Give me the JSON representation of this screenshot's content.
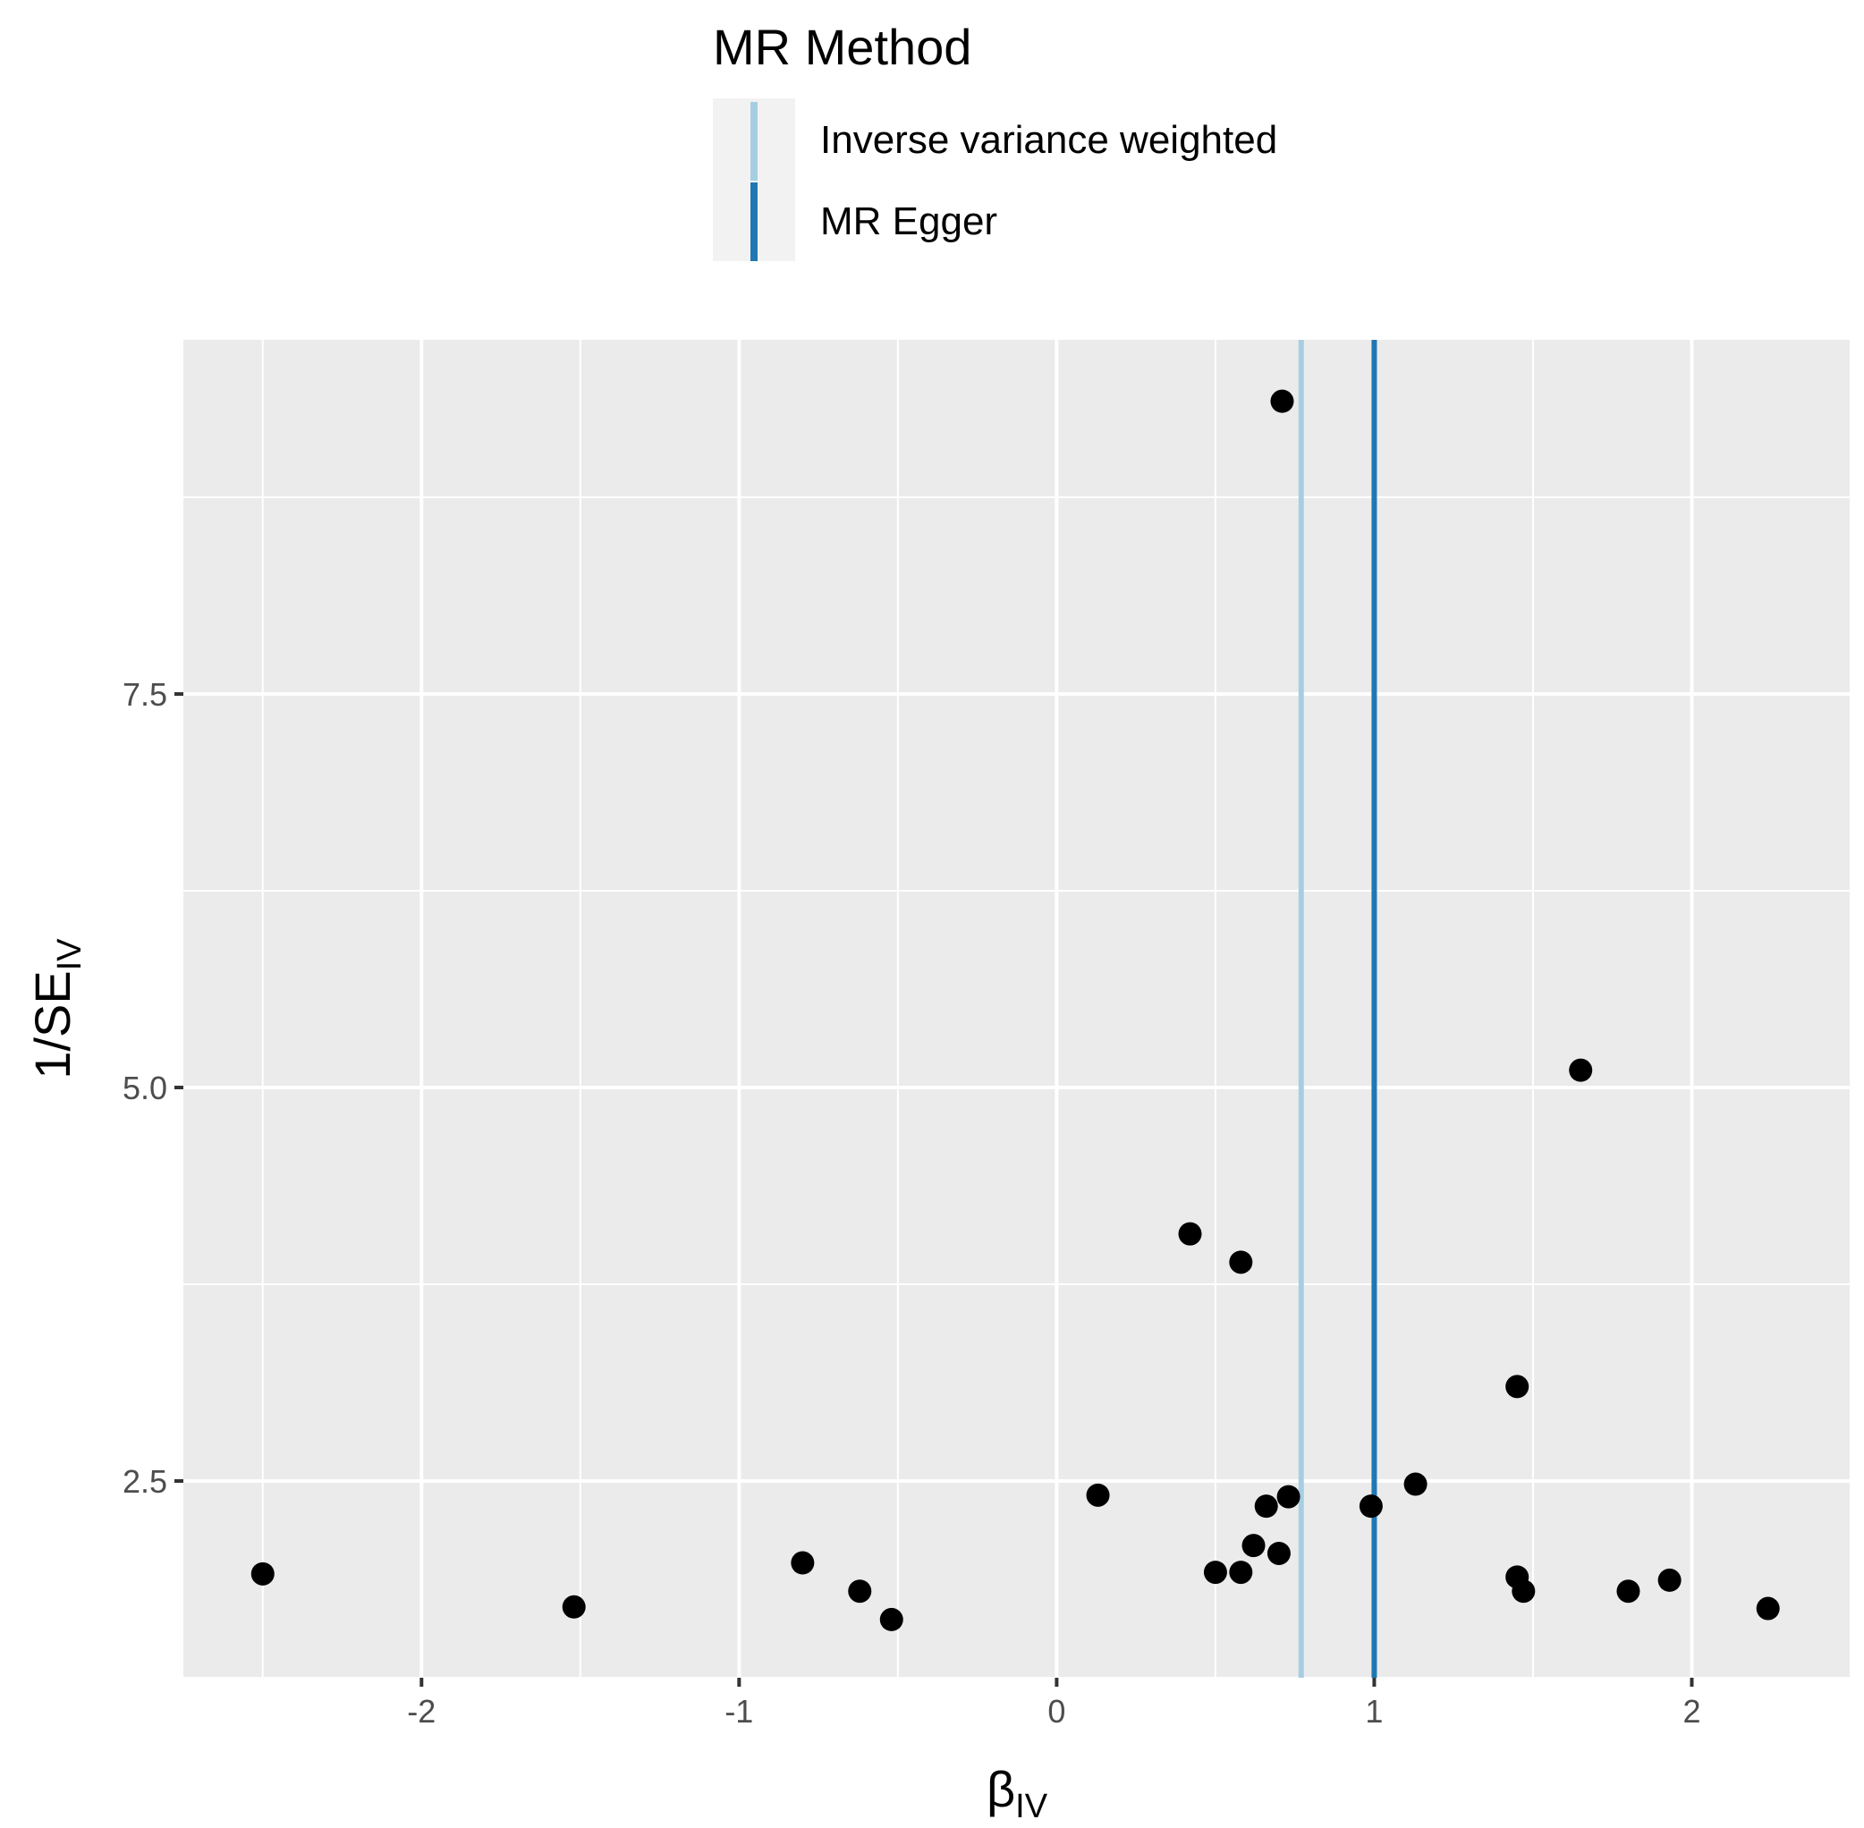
{
  "chart_data": {
    "type": "scatter",
    "xlabel": {
      "main": "β",
      "sub": "IV"
    },
    "ylabel": {
      "main": "1/SE",
      "sub": "IV"
    },
    "xlim": [
      -2.75,
      2.5
    ],
    "ylim": [
      1.25,
      9.75
    ],
    "x_ticks": [
      -2,
      -1,
      0,
      1,
      2
    ],
    "x_tick_labels": [
      "-2",
      "-1",
      "0",
      "1",
      "2"
    ],
    "y_ticks": [
      2.5,
      5.0,
      7.5
    ],
    "y_tick_labels": [
      "2.5",
      "5.0",
      "7.5"
    ],
    "grid": true,
    "legend": {
      "title": "MR Method",
      "position": "top",
      "entries": [
        {
          "label": "Inverse variance weighted",
          "color": "#a6cee3"
        },
        {
          "label": "MR Egger",
          "color": "#1f78b4"
        }
      ]
    },
    "vlines": [
      {
        "name": "Inverse variance weighted",
        "x": 0.77,
        "color": "#a6cee3"
      },
      {
        "name": "MR Egger",
        "x": 1.0,
        "color": "#1f78b4"
      }
    ],
    "points": [
      {
        "x": -2.5,
        "y": 1.91
      },
      {
        "x": -1.52,
        "y": 1.7
      },
      {
        "x": -0.8,
        "y": 1.98
      },
      {
        "x": -0.62,
        "y": 1.8
      },
      {
        "x": -0.52,
        "y": 1.62
      },
      {
        "x": 0.13,
        "y": 2.41
      },
      {
        "x": 0.42,
        "y": 4.07
      },
      {
        "x": 0.5,
        "y": 1.92
      },
      {
        "x": 0.58,
        "y": 1.92
      },
      {
        "x": 0.58,
        "y": 3.89
      },
      {
        "x": 0.62,
        "y": 2.09
      },
      {
        "x": 0.66,
        "y": 2.34
      },
      {
        "x": 0.7,
        "y": 2.04
      },
      {
        "x": 0.71,
        "y": 9.36
      },
      {
        "x": 0.73,
        "y": 2.4
      },
      {
        "x": 0.99,
        "y": 2.34
      },
      {
        "x": 1.13,
        "y": 2.48
      },
      {
        "x": 1.45,
        "y": 1.89
      },
      {
        "x": 1.45,
        "y": 3.1
      },
      {
        "x": 1.47,
        "y": 1.8
      },
      {
        "x": 1.65,
        "y": 5.11
      },
      {
        "x": 1.8,
        "y": 1.8
      },
      {
        "x": 1.93,
        "y": 1.87
      },
      {
        "x": 2.24,
        "y": 1.69
      }
    ],
    "colors": {
      "panel": "#ebebeb",
      "grid": "#ffffff",
      "point": "#000000",
      "tick": "#333333",
      "tick_text": "#4d4d4d",
      "legend_key_bg": "#f2f2f2"
    }
  }
}
